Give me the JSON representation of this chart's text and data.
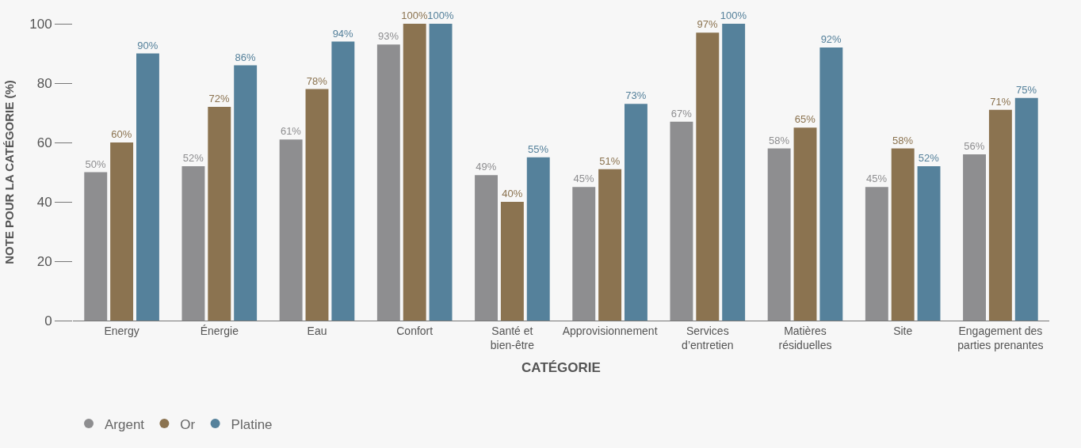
{
  "chart_data": {
    "type": "bar",
    "xlabel": "CATÉGORIE",
    "ylabel": "NOTE POUR LA CATÉGORIE (%)",
    "categories": [
      "Energy",
      "Énergie",
      "Eau",
      "Confort",
      "Santé et bien-être",
      "Approvisionnement",
      "Services d’entretien",
      "Matières résiduelles",
      "Site",
      "Engagement des parties prenantes"
    ],
    "series": [
      {
        "name": "Argent",
        "color": "#8e8e90",
        "values": [
          50,
          52,
          61,
          93,
          49,
          45,
          67,
          58,
          45,
          56
        ],
        "value_labels": [
          "50%",
          "52%",
          "61%",
          "93%",
          "49%",
          "45%",
          "67%",
          "58%",
          "45%",
          "56%"
        ]
      },
      {
        "name": "Or",
        "color": "#8b7350",
        "values": [
          60,
          72,
          78,
          100,
          40,
          51,
          97,
          65,
          58,
          71
        ],
        "value_labels": [
          "60%",
          "72%",
          "78%",
          "100%",
          "40%",
          "51%",
          "97%",
          "65%",
          "58%",
          "71%"
        ]
      },
      {
        "name": "Platine",
        "color": "#55819b",
        "values": [
          90,
          86,
          94,
          100,
          55,
          73,
          100,
          92,
          52,
          75
        ],
        "value_labels": [
          "90%",
          "86%",
          "94%",
          "100%",
          "55%",
          "73%",
          "100%",
          "92%",
          "52%",
          "75%"
        ]
      }
    ],
    "ylim": [
      0,
      100
    ],
    "yticks": [
      0,
      20,
      40,
      60,
      80,
      100
    ],
    "grid": false,
    "legend": "bottom left",
    "marker": "circle"
  }
}
